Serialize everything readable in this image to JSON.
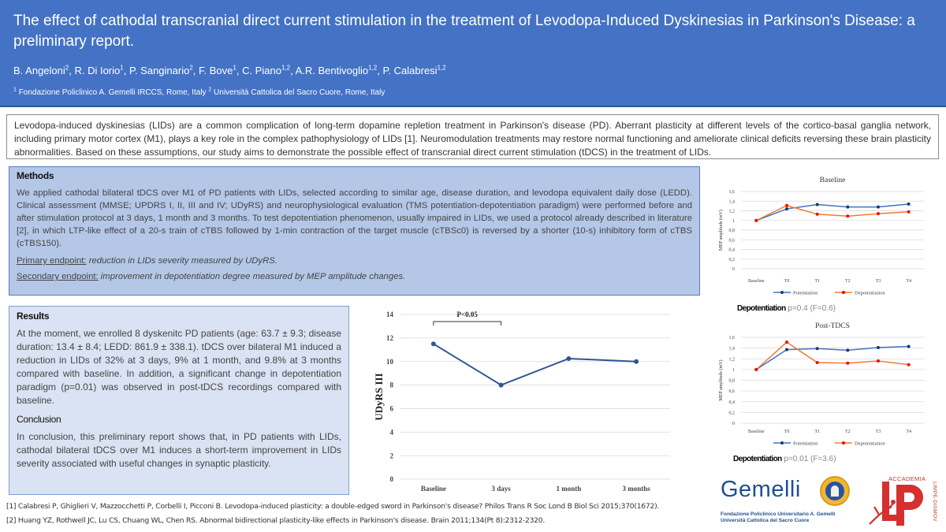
{
  "header": {
    "title": "The effect of cathodal transcranial direct current stimulation in the treatment of Levodopa-Induced Dyskinesias in Parkinson's Disease: a preliminary report.",
    "authors": [
      {
        "name": "B. Angeloni",
        "sup": "2"
      },
      {
        "name": "R. Di Iorio",
        "sup": "1"
      },
      {
        "name": "P. Sanginario",
        "sup": "2"
      },
      {
        "name": "F. Bove",
        "sup": "1"
      },
      {
        "name": "C. Piano",
        "sup": "1,2"
      },
      {
        "name": "A.R. Bentivoglio",
        "sup": "1,2"
      },
      {
        "name": "P. Calabresi",
        "sup": "1,2"
      }
    ],
    "affiliations": [
      {
        "sup": "1",
        "text": "Fondazione Policlinico A. Gemelli IRCCS, Rome, Italy"
      },
      {
        "sup": "2",
        "text": "Università Cattolica del Sacro Cuore, Rome, Italy"
      }
    ],
    "bg_color": "#4472c4"
  },
  "intro": {
    "text": "Levodopa-induced dyskinesias (LIDs) are a common complication of long-term dopamine repletion treatment in Parkinson's disease (PD). Aberrant plasticity at different levels of the cortico-basal ganglia network, including primary motor cortex (M1), plays a key role in the complex pathophysiology of LIDs [1]. Neuromodulation treatments may restore normal functioning and ameliorate clinical deficits reversing these brain plasticity abnormalities. Based on these assumptions, our study aims to demonstrate the possible effect of transcranial direct current stimulation (tDCS) in the treatment of LIDs."
  },
  "methods": {
    "heading": "Methods",
    "body": "We applied cathodal bilateral tDCS over M1 of PD patients with LIDs, selected according to similar age, disease duration, and levodopa equivalent daily dose (LEDD). Clinical assessment (MMSE; UPDRS I, II, III and IV; UDyRS) and neurophysiological evaluation (TMS potentiation-depotentiation paradigm) were performed before and after stimulation protocol at 3 days, 1 month and 3 months. To test depotentiation phenomenon, usually impaired in LIDs, we used a protocol already described in literature [2], in which LTP-like effect of a 20-s train of cTBS followed by 1-min contraction of the target muscle (cTBSc0)  is reversed by a shorter (10-s) inhibitory form of cTBS (cTBS150).",
    "primary_label": "Primary endpoint:",
    "primary_text": "reduction in LIDs severity measured by UDyRS.",
    "secondary_label": "Secondary endpoint:",
    "secondary_text": "improvement in depotentiation degree measured by MEP amplitude changes."
  },
  "results": {
    "heading": "Results",
    "body": "At the moment, we enrolled 8 dyskenitc PD patients (age: 63.7 ± 9.3; disease duration: 13.4 ± 8.4; LEDD: 861.9 ± 338.1). tDCS over bilateral M1 induced a reduction in LIDs of 32% at 3 days, 9% at 1 month, and 9.8% at 3 months compared with baseline. In addition, a significant change in depotentiation paradigm (p=0.01) was observed in post-tDCS recordings compared with baseline.",
    "conclusion_heading": "Conclusion",
    "conclusion_body": "In conclusion, this preliminary report shows that, in PD patients with LIDs, cathodal bilateral tDCS over M1 induces a short-term improvement in LIDs severity associated with useful changes in synaptic plasticity."
  },
  "stats": {
    "baseline": {
      "label": "Depotentiation",
      "value": "p=0.4 (F=0.6)"
    },
    "post": {
      "label": "Depotentiation",
      "value": "p=0.01 (F=3.6)"
    }
  },
  "references": [
    "[1] Calabresi P, Ghiglieri V, Mazzocchetti P, Corbelli I, Picconi B. Levodopa-induced plasticity: a double-edged sword in Parkinson's disease? Philos Trans R Soc Lond B Biol Sci 2015;370(1672).",
    "[2] Huang YZ, Rothwell JC, Lu CS, Chuang WL, Chen RS. Abnormal bidirectional plasticity-like effects in Parkinson's disease. Brain 2011;134(Pt 8):2312-2320."
  ],
  "logos": {
    "gemelli_wordmark": "Gemelli",
    "gemelli_sub_1": "Fondazione Policlinico Universitario A. Gemelli",
    "gemelli_sub_2": "Università Cattolica del Sacro Cuore",
    "accademia_label": "ACCADEMIA",
    "accademia_vertical": "LIMPE-DISMOV"
  },
  "chart_data": [
    {
      "type": "line",
      "title": "",
      "xlabel": "",
      "ylabel": "UDyRS III",
      "categories": [
        "Baseline",
        "3 days",
        "1 month",
        "3 months"
      ],
      "series": [
        {
          "name": "UDyRS III",
          "values": [
            11.5,
            8.0,
            10.25,
            10.0
          ],
          "color": "#2f5597"
        }
      ],
      "ylim": [
        0,
        14
      ],
      "yticks": [
        0,
        2,
        4,
        6,
        8,
        10,
        12,
        14
      ],
      "grid": true,
      "annotations": [
        {
          "text": "P<0.05",
          "from": "Baseline",
          "to": "3 days"
        }
      ]
    },
    {
      "type": "line",
      "title": "Baseline",
      "xlabel": "",
      "ylabel": "MEP amplitude (mV)",
      "categories": [
        "Baseline",
        "T0",
        "T1",
        "T2",
        "T3",
        "T4"
      ],
      "series": [
        {
          "name": "Potentiation",
          "values": [
            1.0,
            1.24,
            1.33,
            1.28,
            1.28,
            1.34
          ],
          "color": "#4472c4",
          "marker": "#1f3864"
        },
        {
          "name": "Depotentiation",
          "values": [
            1.0,
            1.31,
            1.13,
            1.09,
            1.14,
            1.18
          ],
          "color": "#ed7d31",
          "marker": "#ff0000"
        }
      ],
      "ylim": [
        0,
        1.6
      ],
      "yticks": [
        "0",
        "0,2",
        "0,4",
        "0,6",
        "0,8",
        "1",
        "1,2",
        "1,4",
        "1,6"
      ],
      "grid": true,
      "legend": "bottom"
    },
    {
      "type": "line",
      "title": "Post-TDCS",
      "xlabel": "",
      "ylabel": "MEP amplitude (mV)",
      "categories": [
        "Baseline",
        "T0",
        "T1",
        "T2",
        "T3",
        "T4"
      ],
      "series": [
        {
          "name": "Potentiation",
          "values": [
            1.0,
            1.37,
            1.39,
            1.36,
            1.41,
            1.43
          ],
          "color": "#4472c4",
          "marker": "#1f3864"
        },
        {
          "name": "Depotentiation",
          "values": [
            1.0,
            1.51,
            1.13,
            1.12,
            1.16,
            1.09
          ],
          "color": "#ed7d31",
          "marker": "#ff0000"
        }
      ],
      "ylim": [
        0,
        1.6
      ],
      "yticks": [
        "0",
        "0,2",
        "0,4",
        "0,6",
        "0,8",
        "1",
        "1,2",
        "1,4",
        "1,6"
      ],
      "grid": true,
      "legend": "bottom"
    }
  ]
}
